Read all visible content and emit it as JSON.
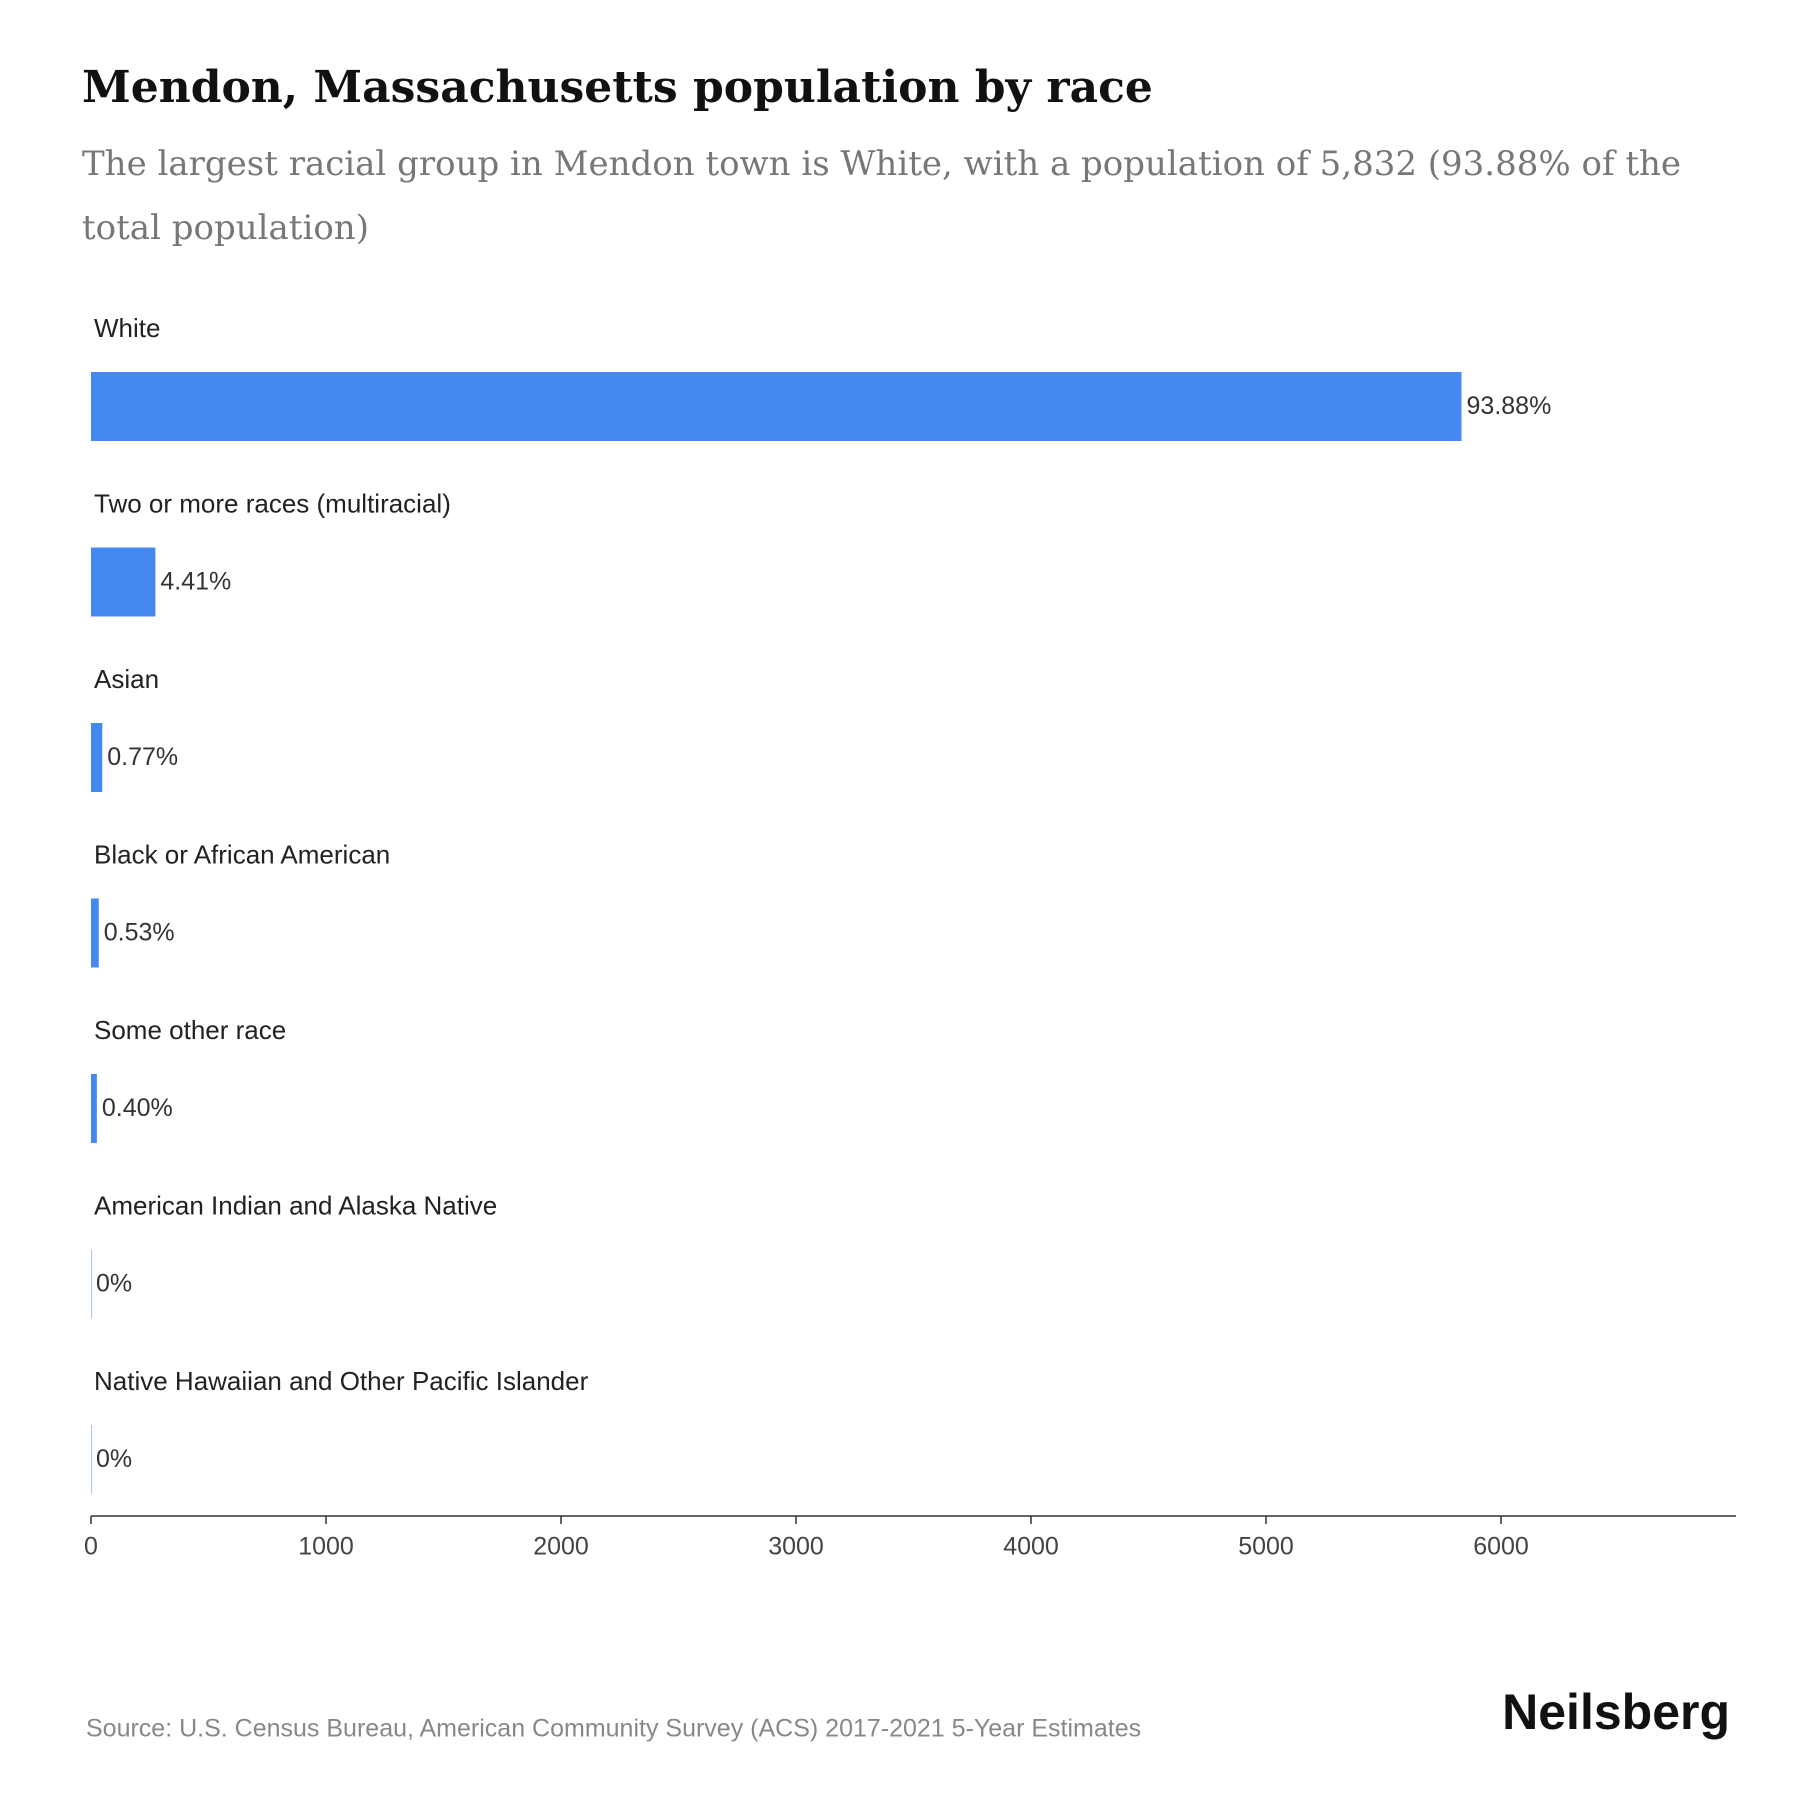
{
  "chart_data": {
    "type": "hbar",
    "title": "Mendon, Massachusetts population by race",
    "subtitle": "The largest racial group in Mendon town is White, with a population of 5,832 (93.88% of the total population)",
    "categories": [
      "White",
      "Two or more races (multiracial)",
      "Asian",
      "Black or African American",
      "Some other race",
      "American Indian and Alaska Native",
      "Native Hawaiian and Other Pacific Islander"
    ],
    "values": [
      5832,
      274,
      48,
      33,
      25,
      0,
      0
    ],
    "value_labels": [
      "93.88%",
      "4.41%",
      "0.77%",
      "0.53%",
      "0.40%",
      "0%",
      "0%"
    ],
    "color": "#4589f0",
    "xlim": [
      0,
      7000
    ],
    "xticks": [
      0,
      1000,
      2000,
      3000,
      4000,
      5000,
      6000
    ],
    "source": "Source: U.S. Census Bureau, American Community Survey (ACS) 2017-2021 5-Year Estimates",
    "brand": "Neilsberg"
  }
}
